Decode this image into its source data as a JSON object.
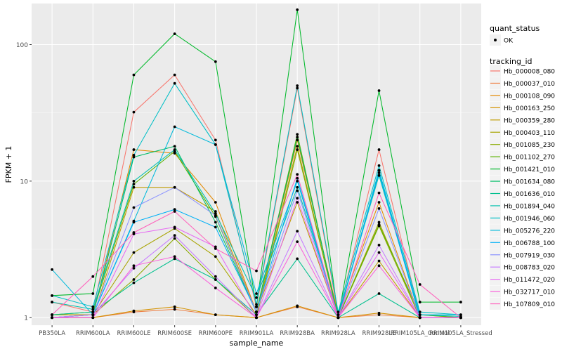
{
  "chart_data": {
    "type": "line",
    "xlabel": "sample_name",
    "ylabel": "FPKM + 1",
    "y_scale": "log10",
    "ylim": [
      0.88,
      200
    ],
    "y_ticks": [
      1,
      10,
      100
    ],
    "y_tick_labels": [
      "1",
      "10",
      "100"
    ],
    "grid": true,
    "legend_position": "right",
    "categories": [
      "PB350LA",
      "RRIM600LA",
      "RRIM600LE",
      "RRIM600SE",
      "RRIM600PE",
      "RRIM901LA",
      "RRIM928BA",
      "RRIM928LA",
      "RRIM928LE",
      "RRIM105LA_Control",
      "RRIM105LA_Stressed"
    ],
    "x_tick_labels": [
      "PB350LA",
      "RRIM600LA",
      "RRIM600LE",
      "RRIM600SE",
      "RRIM600PE",
      "RRIM901LA",
      "RRIM928BA",
      "RRIM928LA",
      "RRIM928LE",
      "RRIM105LA_Control",
      "RRIM105LA_Stressed"
    ],
    "quant_legend": {
      "title": "quant_status",
      "entries": [
        "OK"
      ]
    },
    "series_legend_title": "tracking_id",
    "series": [
      {
        "name": "Hb_000008_080",
        "color": "#F8766D",
        "values": [
          1.3,
          1.1,
          32,
          60,
          20,
          1.2,
          48,
          1.05,
          17,
          1.05,
          1.0
        ]
      },
      {
        "name": "Hb_000037_010",
        "color": "#EE8044",
        "values": [
          1.0,
          1.0,
          1.1,
          1.15,
          1.05,
          1.0,
          1.2,
          1.0,
          1.05,
          1.0,
          1.0
        ]
      },
      {
        "name": "Hb_000108_090",
        "color": "#E38900",
        "values": [
          1.05,
          1.05,
          17,
          16,
          7,
          1.1,
          20,
          1.05,
          7,
          1.0,
          1.0
        ]
      },
      {
        "name": "Hb_000163_250",
        "color": "#D49200",
        "values": [
          1.0,
          1.0,
          1.12,
          1.2,
          1.05,
          1.0,
          1.22,
          1.0,
          1.08,
          1.0,
          1.0
        ]
      },
      {
        "name": "Hb_000359_280",
        "color": "#C09B00",
        "values": [
          1.0,
          1.0,
          9,
          9,
          6,
          1.1,
          7,
          1.0,
          2.6,
          1.0,
          1.0
        ]
      },
      {
        "name": "Hb_000403_110",
        "color": "#A8A400",
        "values": [
          1.05,
          1.05,
          3.0,
          4.5,
          2.8,
          1.05,
          18,
          1.0,
          5,
          1.0,
          1.0
        ]
      },
      {
        "name": "Hb_001085_230",
        "color": "#8AAB00",
        "values": [
          1.0,
          1.05,
          1.9,
          3.8,
          1.9,
          1.0,
          17,
          1.0,
          4.7,
          1.0,
          1.0
        ]
      },
      {
        "name": "Hb_001102_270",
        "color": "#5BB300",
        "values": [
          1.05,
          1.1,
          9.5,
          16.5,
          5.5,
          1.1,
          22,
          1.0,
          4.8,
          1.05,
          1.0
        ]
      },
      {
        "name": "Hb_001421_010",
        "color": "#00B92A",
        "values": [
          1.45,
          1.5,
          60,
          120,
          75,
          1.2,
          180,
          1.0,
          46,
          1.3,
          1.3
        ]
      },
      {
        "name": "Hb_001634_080",
        "color": "#00BE67",
        "values": [
          1.0,
          1.05,
          15,
          18,
          5,
          1.1,
          21,
          1.0,
          12,
          1.0,
          1.0
        ]
      },
      {
        "name": "Hb_001636_010",
        "color": "#00C08E",
        "values": [
          1.05,
          1.1,
          1.8,
          2.7,
          1.9,
          1.05,
          2.7,
          1.0,
          1.5,
          1.0,
          1.0
        ]
      },
      {
        "name": "Hb_001894_040",
        "color": "#00C1AD",
        "values": [
          1.3,
          1.15,
          10,
          17,
          5.8,
          1.4,
          9,
          1.05,
          11,
          1.05,
          1.02
        ]
      },
      {
        "name": "Hb_001946_060",
        "color": "#00BFC6",
        "values": [
          1.45,
          1.2,
          15.5,
          52,
          18.5,
          1.25,
          50,
          1.1,
          13,
          1.1,
          1.05
        ]
      },
      {
        "name": "Hb_005276_220",
        "color": "#00BADB",
        "values": [
          2.25,
          1.05,
          5.1,
          25,
          18.5,
          1.5,
          10,
          1.0,
          12,
          1.05,
          1.05
        ]
      },
      {
        "name": "Hb_006788_100",
        "color": "#00B0F6",
        "values": [
          1.0,
          1.05,
          5.0,
          6.2,
          4.6,
          1.1,
          10.5,
          1.0,
          11.5,
          1.0,
          1.0
        ]
      },
      {
        "name": "Hb_007919_030",
        "color": "#8B93FF",
        "values": [
          1.0,
          1.05,
          6.4,
          9,
          5.6,
          1.1,
          8.5,
          1.0,
          6.3,
          1.0,
          1.0
        ]
      },
      {
        "name": "Hb_008783_020",
        "color": "#C77CFF",
        "values": [
          1.0,
          1.05,
          2.3,
          4.0,
          2.0,
          1.0,
          4.3,
          1.0,
          3.4,
          1.0,
          1.0
        ]
      },
      {
        "name": "Hb_011472_020",
        "color": "#E76BF3",
        "values": [
          1.0,
          1.0,
          4.1,
          4.6,
          3.3,
          1.0,
          7.5,
          1.0,
          3.0,
          1.0,
          1.0
        ]
      },
      {
        "name": "Hb_032717_010",
        "color": "#FA62DB",
        "values": [
          1.0,
          1.0,
          2.4,
          2.8,
          1.65,
          1.0,
          3.6,
          1.0,
          2.4,
          1.0,
          1.0
        ]
      },
      {
        "name": "Hb_107809_010",
        "color": "#FF62BC",
        "values": [
          1.05,
          2.0,
          4.2,
          6.0,
          3.2,
          2.2,
          11.2,
          1.0,
          8.2,
          1.75,
          1.0
        ]
      }
    ]
  }
}
